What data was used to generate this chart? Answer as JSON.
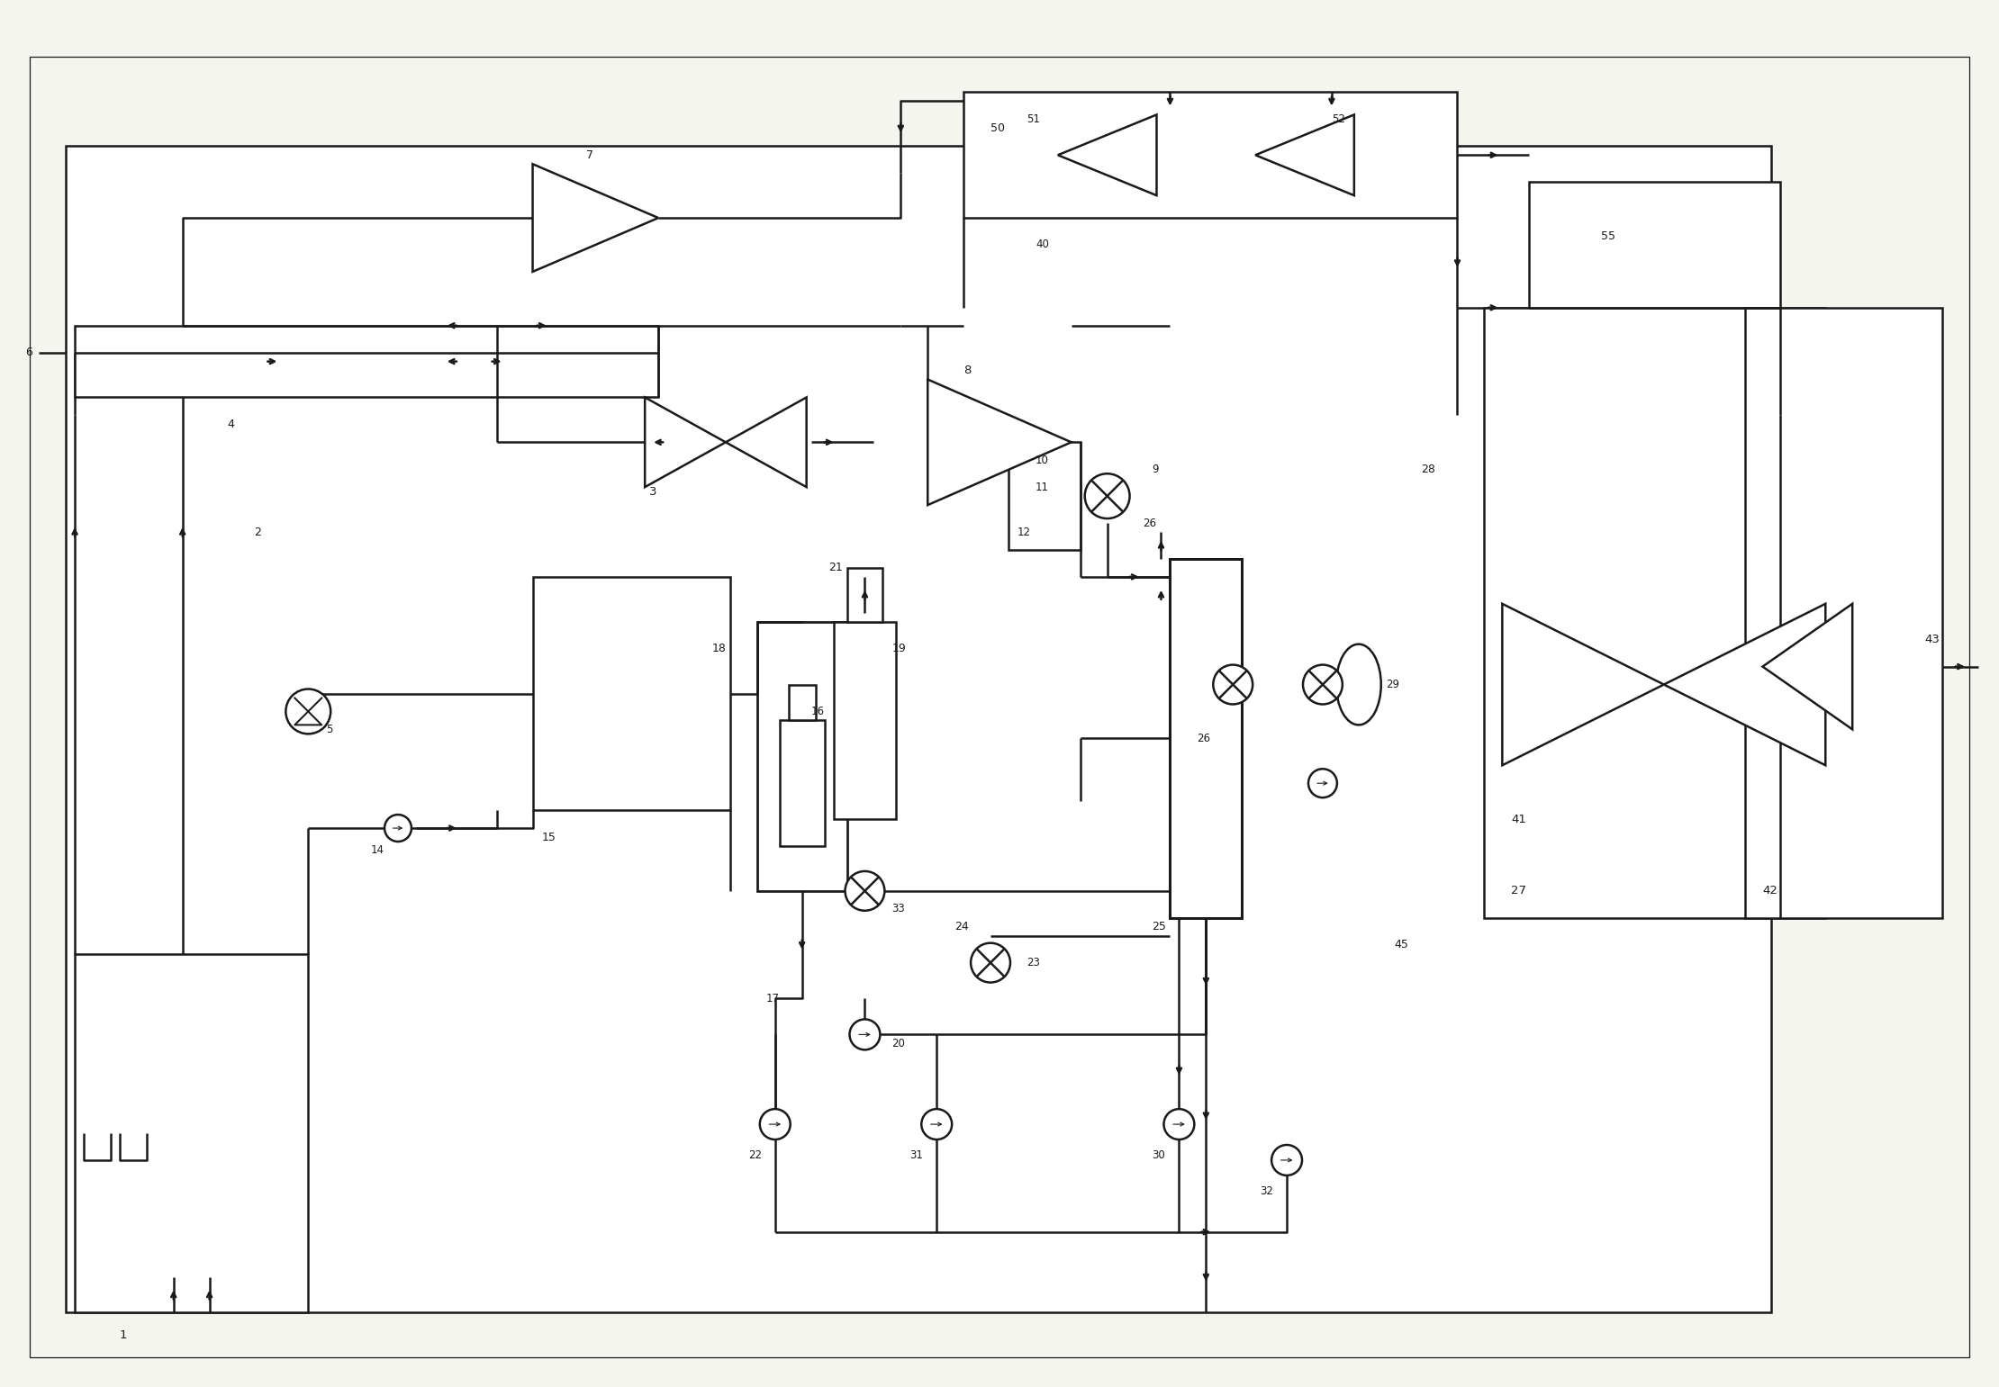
{
  "bg_color": "#f5f5f0",
  "line_color": "#1a1a1a",
  "lw": 1.8,
  "fig_width": 22.2,
  "fig_height": 15.41
}
